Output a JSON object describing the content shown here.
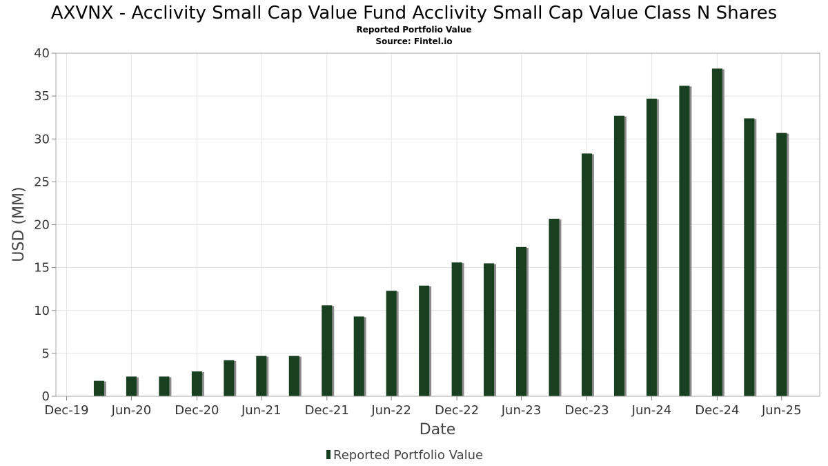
{
  "chart_data": {
    "type": "bar",
    "title": "AXVNX - Acclivity Small Cap Value Fund Acclivity Small Cap Value Class N Shares",
    "subtitle": "Reported Portfolio Value",
    "source": "Source: Fintel.io",
    "xlabel": "Date",
    "ylabel": "USD (MM)",
    "ylim": [
      0,
      40
    ],
    "yticks": [
      0,
      5,
      10,
      15,
      20,
      25,
      30,
      35,
      40
    ],
    "xlim": [
      "2019-12-01",
      "2025-10-15"
    ],
    "xticks": [
      {
        "date": "2019-12-31",
        "label": "Dec-19"
      },
      {
        "date": "2020-06-30",
        "label": "Jun-20"
      },
      {
        "date": "2020-12-31",
        "label": "Dec-20"
      },
      {
        "date": "2021-06-30",
        "label": "Jun-21"
      },
      {
        "date": "2021-12-31",
        "label": "Dec-21"
      },
      {
        "date": "2022-06-30",
        "label": "Jun-22"
      },
      {
        "date": "2022-12-31",
        "label": "Dec-22"
      },
      {
        "date": "2023-06-30",
        "label": "Jun-23"
      },
      {
        "date": "2023-12-31",
        "label": "Dec-23"
      },
      {
        "date": "2024-06-30",
        "label": "Jun-24"
      },
      {
        "date": "2024-12-31",
        "label": "Dec-24"
      },
      {
        "date": "2025-06-30",
        "label": "Jun-25"
      }
    ],
    "grid": true,
    "legend_position": "bottom",
    "colors": {
      "bar": "#173f20",
      "shadow": "#8c8c8c",
      "grid": "#e3e3e3",
      "frame": "#aaaaaa"
    },
    "series": [
      {
        "name": "Reported Portfolio Value",
        "points": [
          {
            "x": "2020-03-31",
            "y": 1.8
          },
          {
            "x": "2020-06-30",
            "y": 2.3
          },
          {
            "x": "2020-09-30",
            "y": 2.3
          },
          {
            "x": "2020-12-31",
            "y": 2.9
          },
          {
            "x": "2021-03-31",
            "y": 4.2
          },
          {
            "x": "2021-06-30",
            "y": 4.7
          },
          {
            "x": "2021-09-30",
            "y": 4.7
          },
          {
            "x": "2021-12-31",
            "y": 10.6
          },
          {
            "x": "2022-03-31",
            "y": 9.3
          },
          {
            "x": "2022-06-30",
            "y": 12.3
          },
          {
            "x": "2022-09-30",
            "y": 12.9
          },
          {
            "x": "2022-12-31",
            "y": 15.6
          },
          {
            "x": "2023-03-31",
            "y": 15.5
          },
          {
            "x": "2023-06-30",
            "y": 17.4
          },
          {
            "x": "2023-09-30",
            "y": 20.7
          },
          {
            "x": "2023-12-31",
            "y": 28.3
          },
          {
            "x": "2024-03-31",
            "y": 32.7
          },
          {
            "x": "2024-06-30",
            "y": 34.7
          },
          {
            "x": "2024-09-30",
            "y": 36.2
          },
          {
            "x": "2024-12-31",
            "y": 38.2
          },
          {
            "x": "2025-03-31",
            "y": 32.4
          },
          {
            "x": "2025-06-30",
            "y": 30.7
          }
        ]
      }
    ]
  }
}
